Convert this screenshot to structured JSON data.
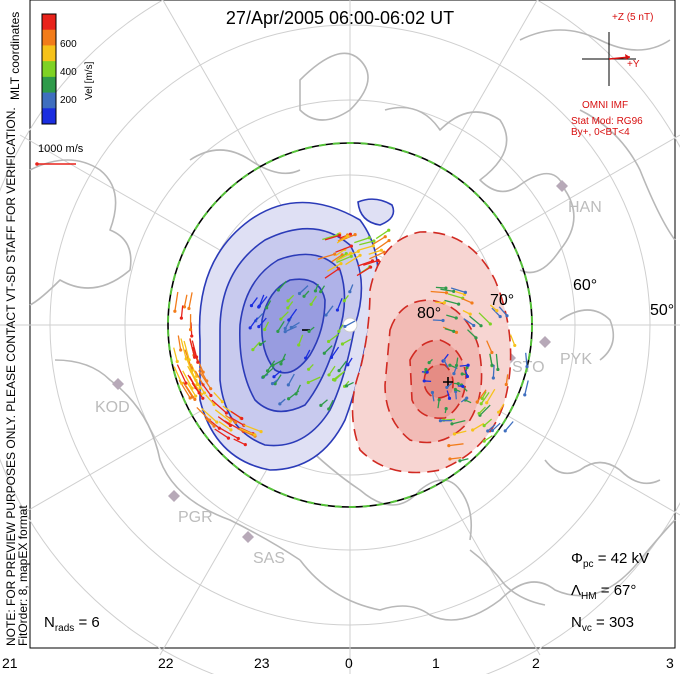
{
  "title": "27/Apr/2005 06:00-06:02 UT",
  "side_text": {
    "coords": "MLT coordinates",
    "note": "NOTE: FOR PREVIEW PURPOSES ONLY. PLEASE CONTACT VT-SD STAFF FOR VERIFICATION.",
    "fit": "FitOrder: 8, mapEX format"
  },
  "colorbar": {
    "label": "Vel [m/s]",
    "ticks": [
      "600",
      "400",
      "200"
    ],
    "colors": [
      "#e8231b",
      "#f27c1a",
      "#f6c21a",
      "#7ed224",
      "#2e9a4a",
      "#3f6fbf",
      "#1b2ee0"
    ]
  },
  "reference_vector": "1000 m/s",
  "imf": {
    "z_label": "+Z (5 nT)",
    "y_label": "+Y",
    "source": "OMNI IMF",
    "model": "Stat Mod: RG96",
    "condition": "By+, 0<BT<4"
  },
  "lat_labels": [
    "80°",
    "70°",
    "60°",
    "50°"
  ],
  "stations": [
    "HAN",
    "STO",
    "PYK",
    "KOD",
    "PGR",
    "SAS"
  ],
  "stats": {
    "phi_sym": "Φ",
    "phi_sub": "pc",
    "phi_val": "= 42 kV",
    "lam_sym": "Λ",
    "lam_sub": "HM",
    "lam_val": "= 67°",
    "nvc_sym": "N",
    "nvc_sub": "vc",
    "nvc_val": "= 303",
    "nrads_sym": "N",
    "nrads_sub": "rads",
    "nrads_val": "= 6"
  },
  "mlt_axis": [
    "21",
    "22",
    "23",
    "0",
    "1",
    "2",
    "3"
  ],
  "colors": {
    "negative_cell": "#2b3bb8",
    "positive_cell": "#d12a22",
    "boundary": "#56c23a",
    "coast": "#b8b8b8",
    "grid": "#cfcfcf",
    "station": "#b7a9b8"
  }
}
